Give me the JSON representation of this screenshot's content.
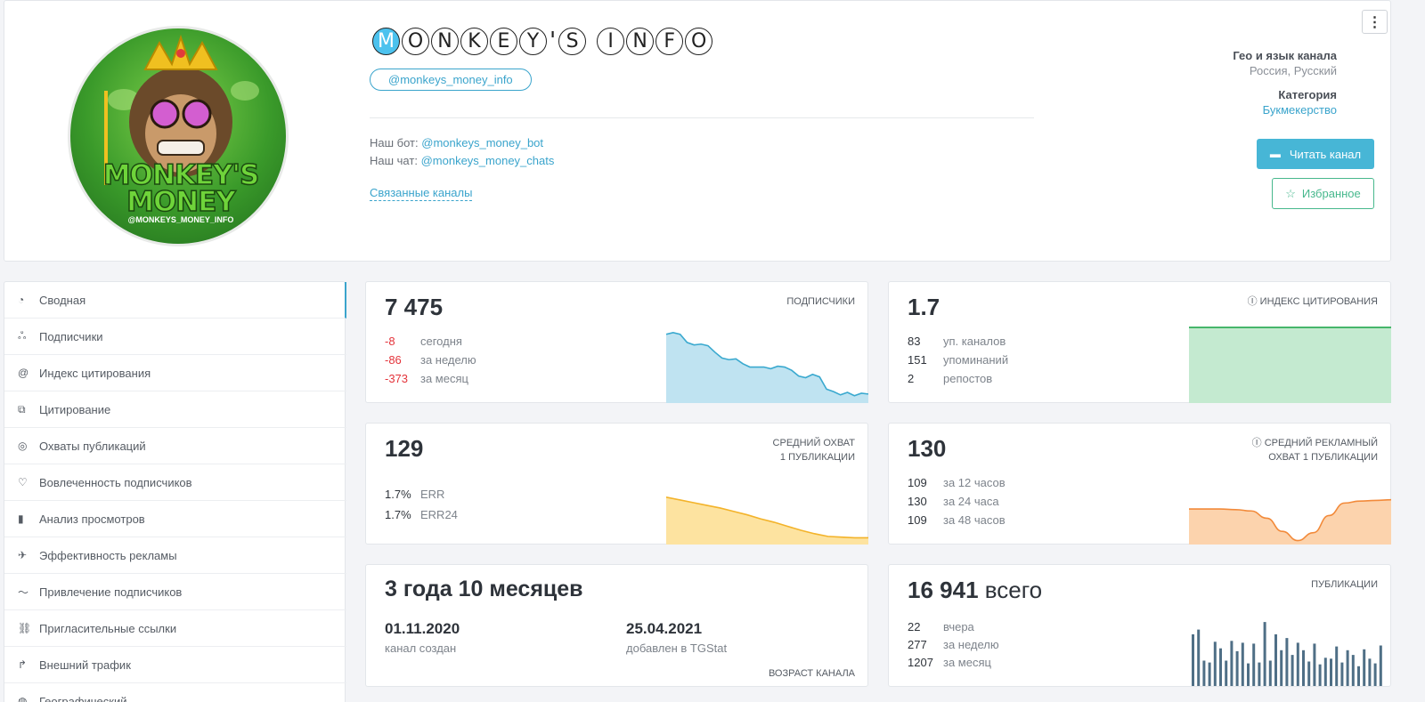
{
  "channel": {
    "title_letters": [
      "M",
      "O",
      "N",
      "K",
      "E",
      "Y",
      "'",
      "S",
      " ",
      "I",
      "N",
      "F",
      "O"
    ],
    "handle": "@monkeys_money_info",
    "avatar_text": "MONKEY'S MONEY",
    "avatar_handle": "@MONKEYS_MONEY_INFO",
    "bot_label": "Наш бот:",
    "bot_link": "@monkeys_money_bot",
    "chat_label": "Наш чат:",
    "chat_link": "@monkeys_money_chats",
    "related_label": "Связанные каналы",
    "geo_label": "Гео и язык канала",
    "geo_value": "Россия, Русский",
    "category_label": "Категория",
    "category_value": "Букмекерство",
    "read_button": "Читать канал",
    "favorite_button": "Избранное"
  },
  "sidebar": {
    "items": [
      {
        "label": "Сводная",
        "icon": "dashboard-icon"
      },
      {
        "label": "Подписчики",
        "icon": "users-icon"
      },
      {
        "label": "Индекс цитирования",
        "icon": "at-icon"
      },
      {
        "label": "Цитирование",
        "icon": "quote-icon"
      },
      {
        "label": "Охваты публикаций",
        "icon": "eye-icon"
      },
      {
        "label": "Вовлеченность подписчиков",
        "icon": "heart-icon"
      },
      {
        "label": "Анализ просмотров",
        "icon": "bar-chart-icon"
      },
      {
        "label": "Эффективность рекламы",
        "icon": "megaphone-icon"
      },
      {
        "label": "Привлечение подписчиков",
        "icon": "trend-icon"
      },
      {
        "label": "Пригласительные ссылки",
        "icon": "link-icon"
      },
      {
        "label": "Внешний трафик",
        "icon": "external-icon"
      },
      {
        "label": "Географический",
        "icon": "globe-icon"
      }
    ]
  },
  "subscribers": {
    "value": "7 475",
    "label": "ПОДПИСЧИКИ",
    "rows": [
      {
        "n": "-8",
        "t": "сегодня"
      },
      {
        "n": "-86",
        "t": "за неделю"
      },
      {
        "n": "-373",
        "t": "за месяц"
      }
    ],
    "color": "#3aa9cf",
    "fill": "#bfe3f1",
    "trend": [
      84,
      86,
      84,
      74,
      71,
      72,
      70,
      62,
      55,
      53,
      54,
      48,
      44,
      44,
      44,
      42,
      45,
      44,
      40,
      33,
      31,
      35,
      32,
      17,
      14,
      10,
      13,
      9,
      12,
      11
    ]
  },
  "citation": {
    "value": "1.7",
    "label": "ИНДЕКС ЦИТИРОВАНИЯ",
    "rows": [
      {
        "n": "83",
        "t": "уп. каналов"
      },
      {
        "n": "151",
        "t": "упоминаний"
      },
      {
        "n": "2",
        "t": "репостов"
      }
    ],
    "color": "#47b66b",
    "fill": "#c4ead0"
  },
  "reach": {
    "value": "129",
    "label_line1": "СРЕДНИЙ ОХВАТ",
    "label_line2": "1 ПУБЛИКАЦИИ",
    "rows": [
      {
        "n": "1.7%",
        "t": "ERR"
      },
      {
        "n": "1.7%",
        "t": "ERR24"
      }
    ],
    "color": "#f3b32a",
    "fill": "#fde3a0",
    "trend": [
      70,
      66,
      62,
      58,
      54,
      49,
      44,
      38,
      33,
      27,
      21,
      16,
      12,
      11,
      10,
      10
    ]
  },
  "ad_reach": {
    "value": "130",
    "label_line1": "СРЕДНИЙ РЕКЛАМНЫЙ",
    "label_line2": "ОХВАТ 1 ПУБЛИКАЦИИ",
    "rows": [
      {
        "n": "109",
        "t": "за 12 часов"
      },
      {
        "n": "130",
        "t": "за 24 часа"
      },
      {
        "n": "109",
        "t": "за 48 часов"
      }
    ],
    "color": "#f28a3a",
    "fill": "#fcd3ad",
    "trend": [
      54,
      54,
      54,
      53,
      51,
      40,
      20,
      6,
      18,
      44,
      63,
      66,
      67,
      68
    ]
  },
  "age": {
    "value": "3 года 10 месяцев",
    "created_date": "01.11.2020",
    "created_label": "канал создан",
    "added_date": "25.04.2021",
    "added_label": "добавлен в TGStat",
    "label": "ВОЗРАСТ КАНАЛА"
  },
  "posts": {
    "value": "16 941",
    "suffix": "всего",
    "label": "ПУБЛИКАЦИИ",
    "rows": [
      {
        "n": "22",
        "t": "вчера"
      },
      {
        "n": "277",
        "t": "за неделю"
      },
      {
        "n": "1207",
        "t": "за месяц"
      }
    ],
    "color": "#4f6f86",
    "bars": [
      55,
      60,
      27,
      25,
      47,
      40,
      27,
      48,
      37,
      46,
      24,
      45,
      25,
      68,
      27,
      55,
      38,
      51,
      33,
      46,
      38,
      26,
      45,
      23,
      30,
      29,
      42,
      25,
      38,
      33,
      21,
      39,
      29,
      24,
      43
    ]
  }
}
